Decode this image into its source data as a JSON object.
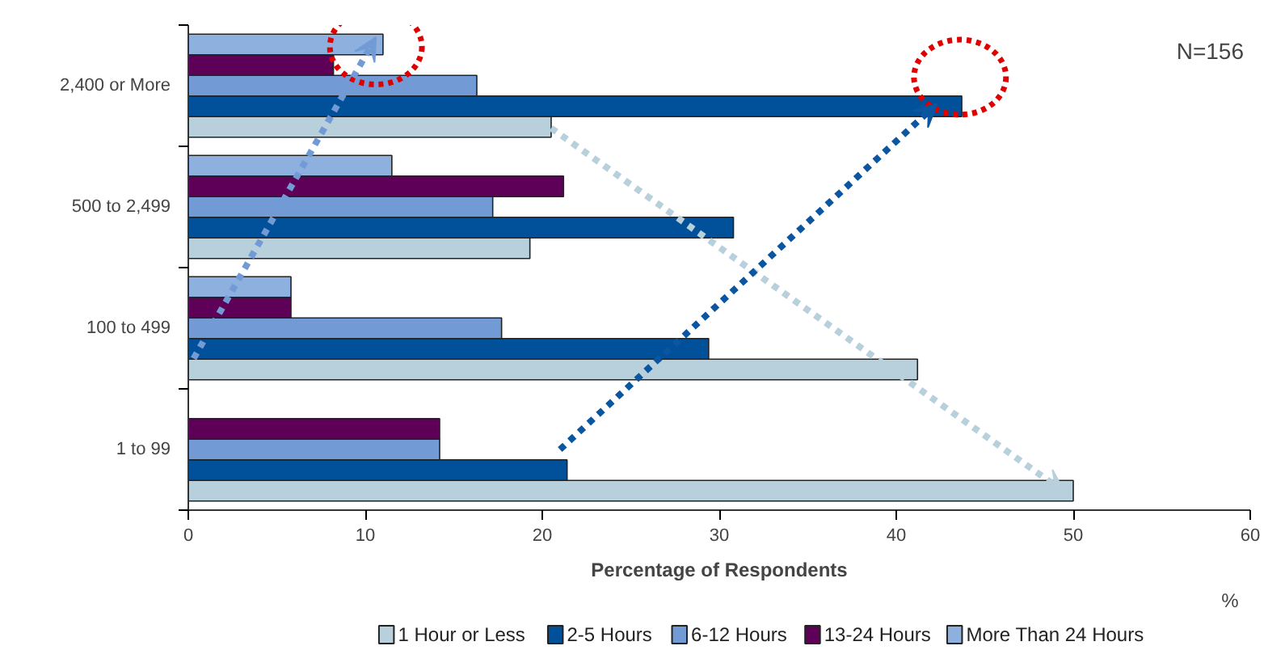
{
  "chart_data": {
    "type": "bar",
    "orientation": "horizontal",
    "categories": [
      "2,400 or More",
      "500 to 2,499",
      "100 to 499",
      "1 to 99"
    ],
    "xlabel": "Percentage of Respondents",
    "xlim": [
      0,
      60
    ],
    "xticks": [
      0,
      10,
      20,
      30,
      40,
      50,
      60
    ],
    "annotations": [
      "N=156",
      "%"
    ],
    "legend": "bottom",
    "grid": false,
    "series": [
      {
        "name": "1 Hour or Less",
        "color": "#b8cfdc",
        "values": [
          20.5,
          19.3,
          41.2,
          50.0
        ]
      },
      {
        "name": "2-5 Hours",
        "color": "#00509a",
        "values": [
          43.7,
          30.8,
          29.4,
          21.4
        ]
      },
      {
        "name": "6-12 Hours",
        "color": "#729bd6",
        "values": [
          16.3,
          17.2,
          17.7,
          14.2
        ]
      },
      {
        "name": "13-24 Hours",
        "color": "#5f0058",
        "values": [
          8.2,
          21.2,
          5.8,
          14.2
        ]
      },
      {
        "name": "More Than 24 Hours",
        "color": "#8db0df",
        "values": [
          11.0,
          11.5,
          5.8,
          null
        ]
      }
    ]
  }
}
